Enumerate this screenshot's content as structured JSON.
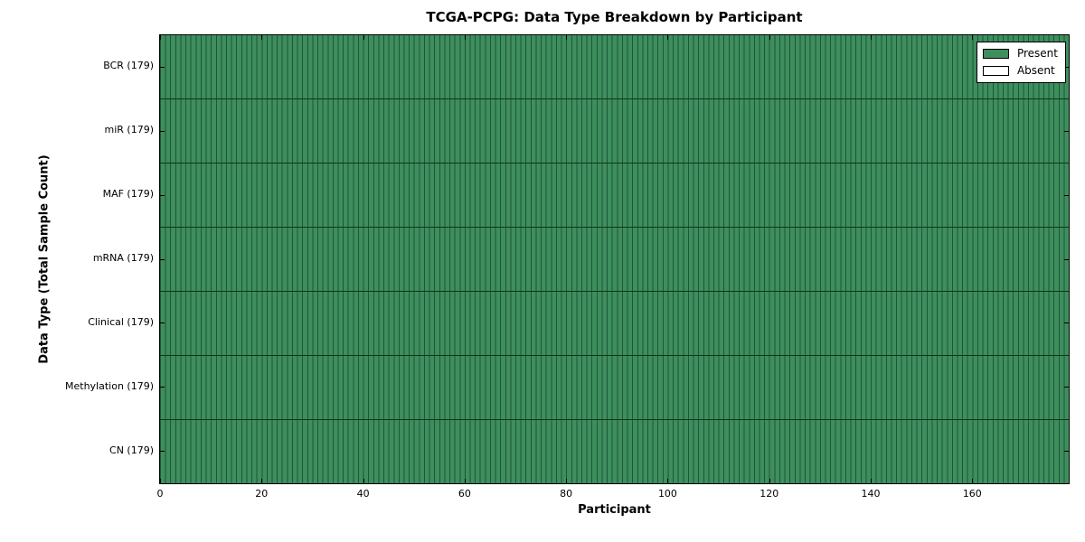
{
  "chart_data": {
    "type": "heatmap",
    "title": "TCGA-PCPG: Data Type Breakdown by Participant",
    "xlabel": "Participant",
    "ylabel": "Data Type (Total Sample Count)",
    "n_participants": 179,
    "xlim": [
      0,
      179
    ],
    "x_ticks": [
      0,
      20,
      40,
      60,
      80,
      100,
      120,
      140,
      160
    ],
    "rows": [
      {
        "label": "BCR (179)",
        "data_type": "BCR",
        "total_samples": 179,
        "present_count": 179,
        "absent_count": 0
      },
      {
        "label": "miR (179)",
        "data_type": "miR",
        "total_samples": 179,
        "present_count": 179,
        "absent_count": 0
      },
      {
        "label": "MAF (179)",
        "data_type": "MAF",
        "total_samples": 179,
        "present_count": 179,
        "absent_count": 0
      },
      {
        "label": "mRNA (179)",
        "data_type": "mRNA",
        "total_samples": 179,
        "present_count": 179,
        "absent_count": 0
      },
      {
        "label": "Clinical (179)",
        "data_type": "Clinical",
        "total_samples": 179,
        "present_count": 179,
        "absent_count": 0
      },
      {
        "label": "Methylation (179)",
        "data_type": "Methylation",
        "total_samples": 179,
        "present_count": 179,
        "absent_count": 0
      },
      {
        "label": "CN (179)",
        "data_type": "CN",
        "total_samples": 179,
        "present_count": 179,
        "absent_count": 0
      }
    ],
    "legend": {
      "position": "upper right",
      "entries": [
        {
          "label": "Present",
          "color": "#3e8e5e"
        },
        {
          "label": "Absent",
          "color": "#ffffff"
        }
      ]
    },
    "colors": {
      "present": "#3e8e5e",
      "absent": "#ffffff",
      "cell_edge": "#1d5737",
      "row_separator": "#10341f",
      "axis": "#000000",
      "background": "#ffffff"
    }
  }
}
